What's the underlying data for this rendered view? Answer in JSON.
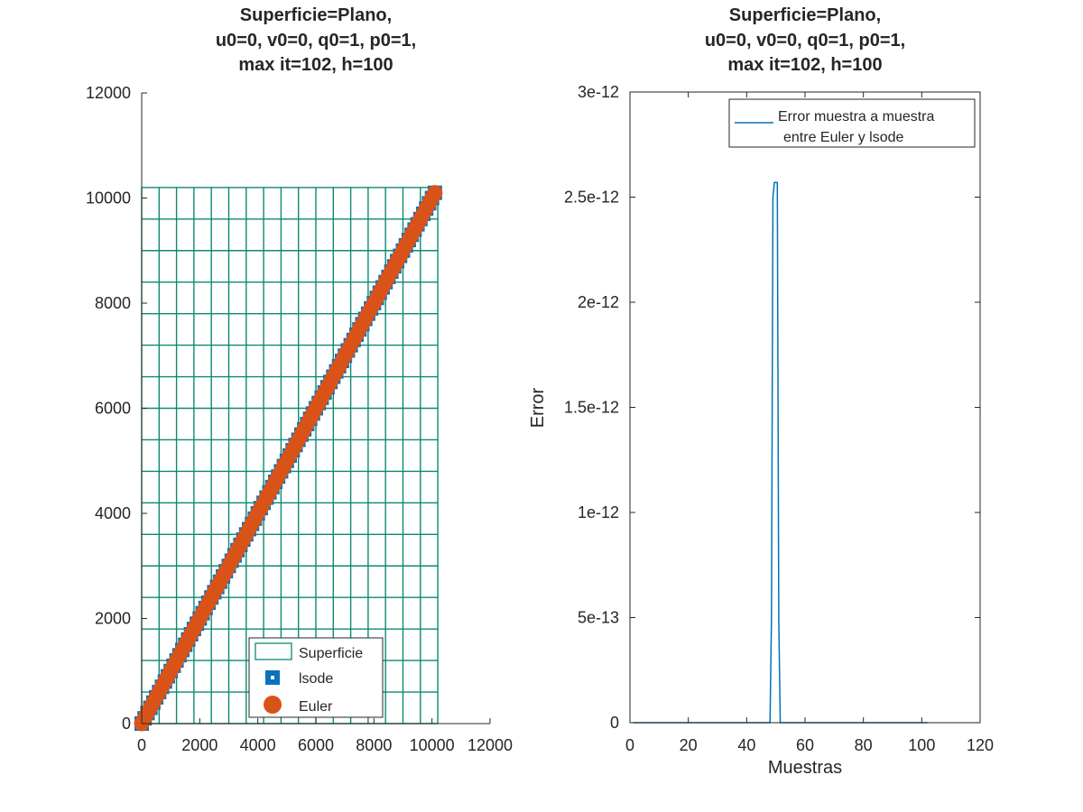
{
  "colors": {
    "surface": "#0b8a73",
    "lsode": "#0b72bd",
    "euler": "#d95319",
    "error": "#0072bd",
    "axis": "#262626"
  },
  "chart_data": [
    {
      "type": "scatter",
      "title_lines": [
        "Superficie=Plano,",
        "u0=0, v0=0, q0=1, p0=1,",
        "max it=102, h=100"
      ],
      "xlabel": "",
      "ylabel": "",
      "xlim": [
        0,
        12000
      ],
      "ylim": [
        0,
        12000
      ],
      "xticks": [
        "0",
        "2000",
        "4000",
        "6000",
        "8000",
        "10000",
        "12000"
      ],
      "yticks": [
        "0",
        "2000",
        "4000",
        "6000",
        "8000",
        "10000",
        "12000"
      ],
      "surface_extent": [
        0,
        10200
      ],
      "surface_grid_x": [
        0,
        600,
        1200,
        1800,
        2400,
        3000,
        3600,
        4200,
        4800,
        5400,
        6000,
        6600,
        7200,
        7800,
        8400,
        9000,
        9600,
        10200
      ],
      "surface_grid_y": [
        0,
        600,
        1200,
        1800,
        2400,
        3000,
        3600,
        4200,
        4800,
        5400,
        6000,
        6600,
        7200,
        7800,
        8400,
        9000,
        9600,
        10200
      ],
      "series": [
        {
          "name": "Superficie",
          "marker": "mesh"
        },
        {
          "name": "lsode",
          "marker": "square",
          "x_start": 0,
          "x_end": 10100,
          "step": 100
        },
        {
          "name": "Euler",
          "marker": "circle",
          "x_start": 0,
          "x_end": 10100,
          "step": 100
        }
      ],
      "legend": {
        "position": "bottom-right",
        "entries": [
          "Superficie",
          "lsode",
          "Euler"
        ]
      }
    },
    {
      "type": "line",
      "title_lines": [
        "Superficie=Plano,",
        "u0=0, v0=0, q0=1, p0=1,",
        "max it=102, h=100"
      ],
      "xlabel": "Muestras",
      "ylabel": "Error",
      "xlim": [
        0,
        120
      ],
      "ylim": [
        0,
        3e-12
      ],
      "xticks": [
        "0",
        "20",
        "40",
        "60",
        "80",
        "100",
        "120"
      ],
      "yticks": [
        "0",
        "5e-13",
        "1e-12",
        "1.5e-12",
        "2e-12",
        "2.5e-12",
        "3e-12"
      ],
      "series": [
        {
          "name": "Error muestra a muestra entre Euler y lsode",
          "x": [
            1,
            48,
            48.5,
            49,
            49.5,
            50,
            50.5,
            51,
            51.5,
            102
          ],
          "y": [
            0,
            0,
            5e-13,
            2.5e-12,
            2.57e-12,
            2.57e-12,
            2.57e-12,
            5e-13,
            0,
            0
          ]
        }
      ],
      "legend": {
        "position": "top-right",
        "lines": [
          "Error  muestra a muestra",
          "entre Euler y lsode"
        ]
      }
    }
  ]
}
